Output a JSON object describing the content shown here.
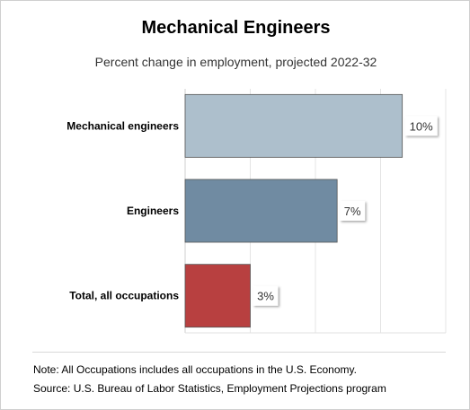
{
  "header": {
    "title": "Mechanical Engineers",
    "subtitle": "Percent change in employment, projected 2022-32"
  },
  "notes": {
    "note": "Note: All Occupations includes all occupations in the U.S. Economy.",
    "source": "Source: U.S. Bureau of Labor Statistics, Employment Projections program"
  },
  "colors": {
    "mechanical": "#adbfcc",
    "engineers": "#708ba2",
    "total": "#b84040"
  },
  "chart_data": {
    "type": "bar",
    "orientation": "horizontal",
    "title": "Mechanical Engineers",
    "subtitle": "Percent change in employment, projected 2022-32",
    "categories": [
      "Mechanical engineers",
      "Engineers",
      "Total, all occupations"
    ],
    "values": [
      10,
      7,
      3
    ],
    "data_labels": [
      "10%",
      "7%",
      "3%"
    ],
    "xlim": [
      0,
      12
    ],
    "grid": true
  }
}
